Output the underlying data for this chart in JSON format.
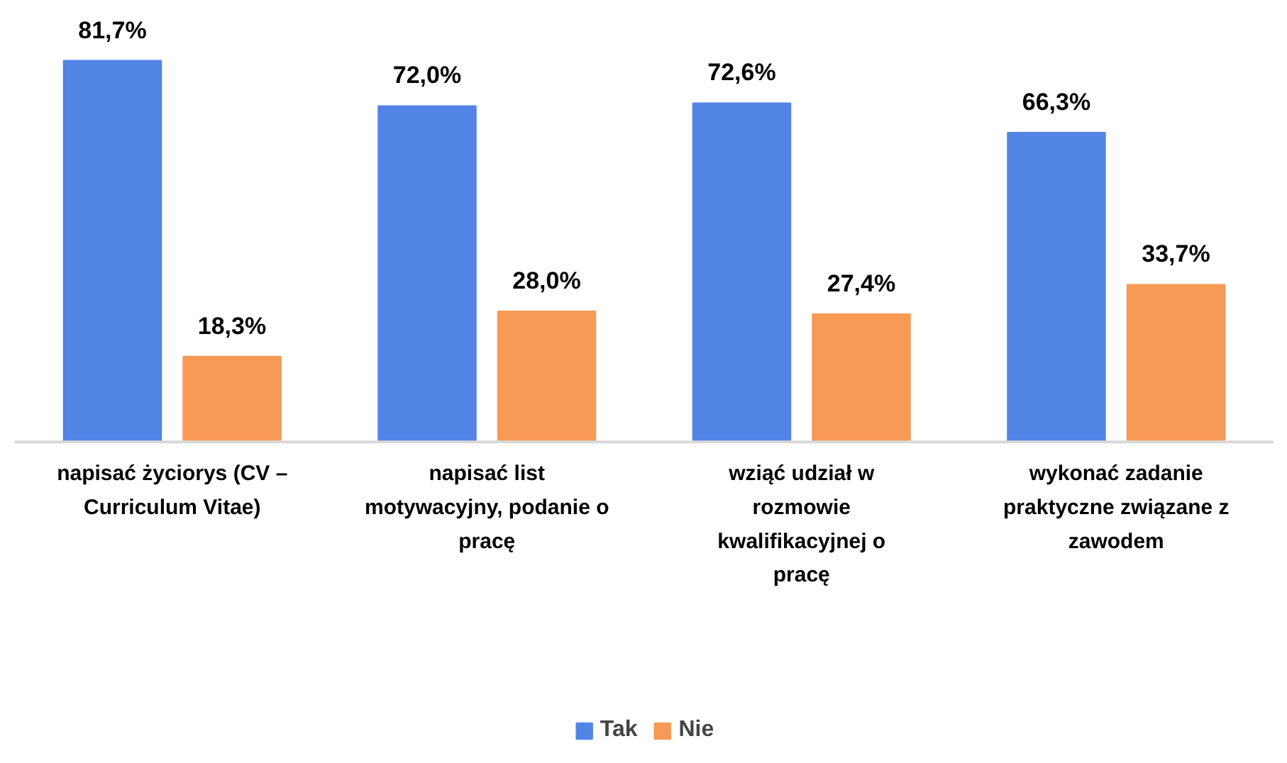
{
  "chart_data": {
    "type": "bar",
    "categories": [
      "napisać życiorys (CV – Curriculum Vitae)",
      "napisać list motywacyjny, podanie o pracę",
      "wziąć udział w rozmowie kwalifikacyjnej o pracę",
      "wykonać zadanie praktyczne związane z zawodem"
    ],
    "series": [
      {
        "name": "Tak",
        "color": "#5284e6",
        "values": [
          81.7,
          72.0,
          72.6,
          66.3
        ],
        "value_labels": [
          "81,7%",
          "72,0%",
          "72,6%",
          "66,3%"
        ]
      },
      {
        "name": "Nie",
        "color": "#f79a55",
        "values": [
          18.3,
          28.0,
          27.4,
          33.7
        ],
        "value_labels": [
          "18,3%",
          "28,0%",
          "27,4%",
          "33,7%"
        ]
      }
    ],
    "tick_labels": "x",
    "legend": "bottom"
  }
}
